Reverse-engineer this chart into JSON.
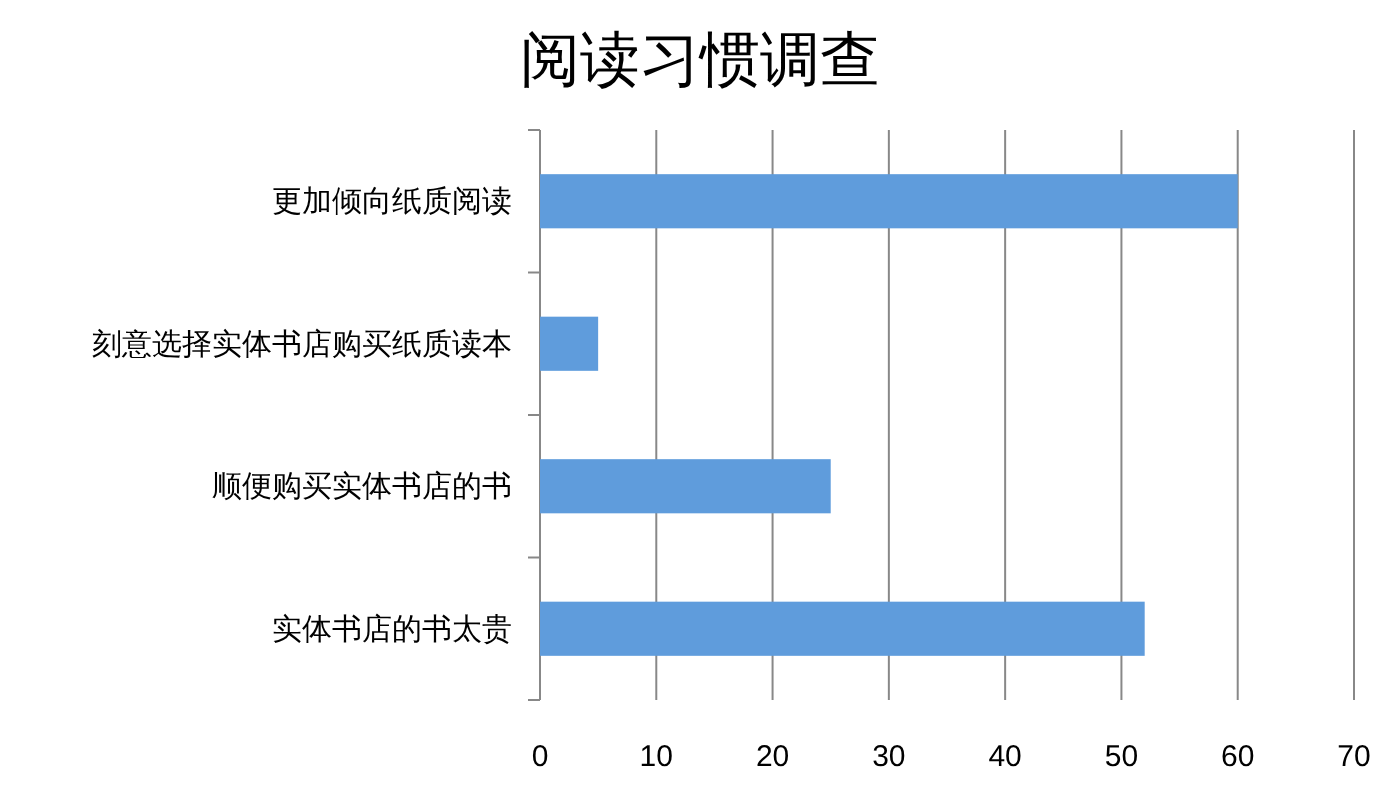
{
  "chart_data": {
    "type": "bar",
    "orientation": "horizontal",
    "title": "阅读习惯调查",
    "categories": [
      "更加倾向纸质阅读",
      "刻意选择实体书店购买纸质读本",
      "顺便购买实体书店的书",
      "实体书店的书太贵"
    ],
    "values": [
      60,
      5,
      25,
      52
    ],
    "color": "#5f9cdc",
    "xlim": [
      0,
      70
    ],
    "xticks": [
      0,
      10,
      20,
      30,
      40,
      50,
      60,
      70
    ],
    "grid": "x"
  }
}
